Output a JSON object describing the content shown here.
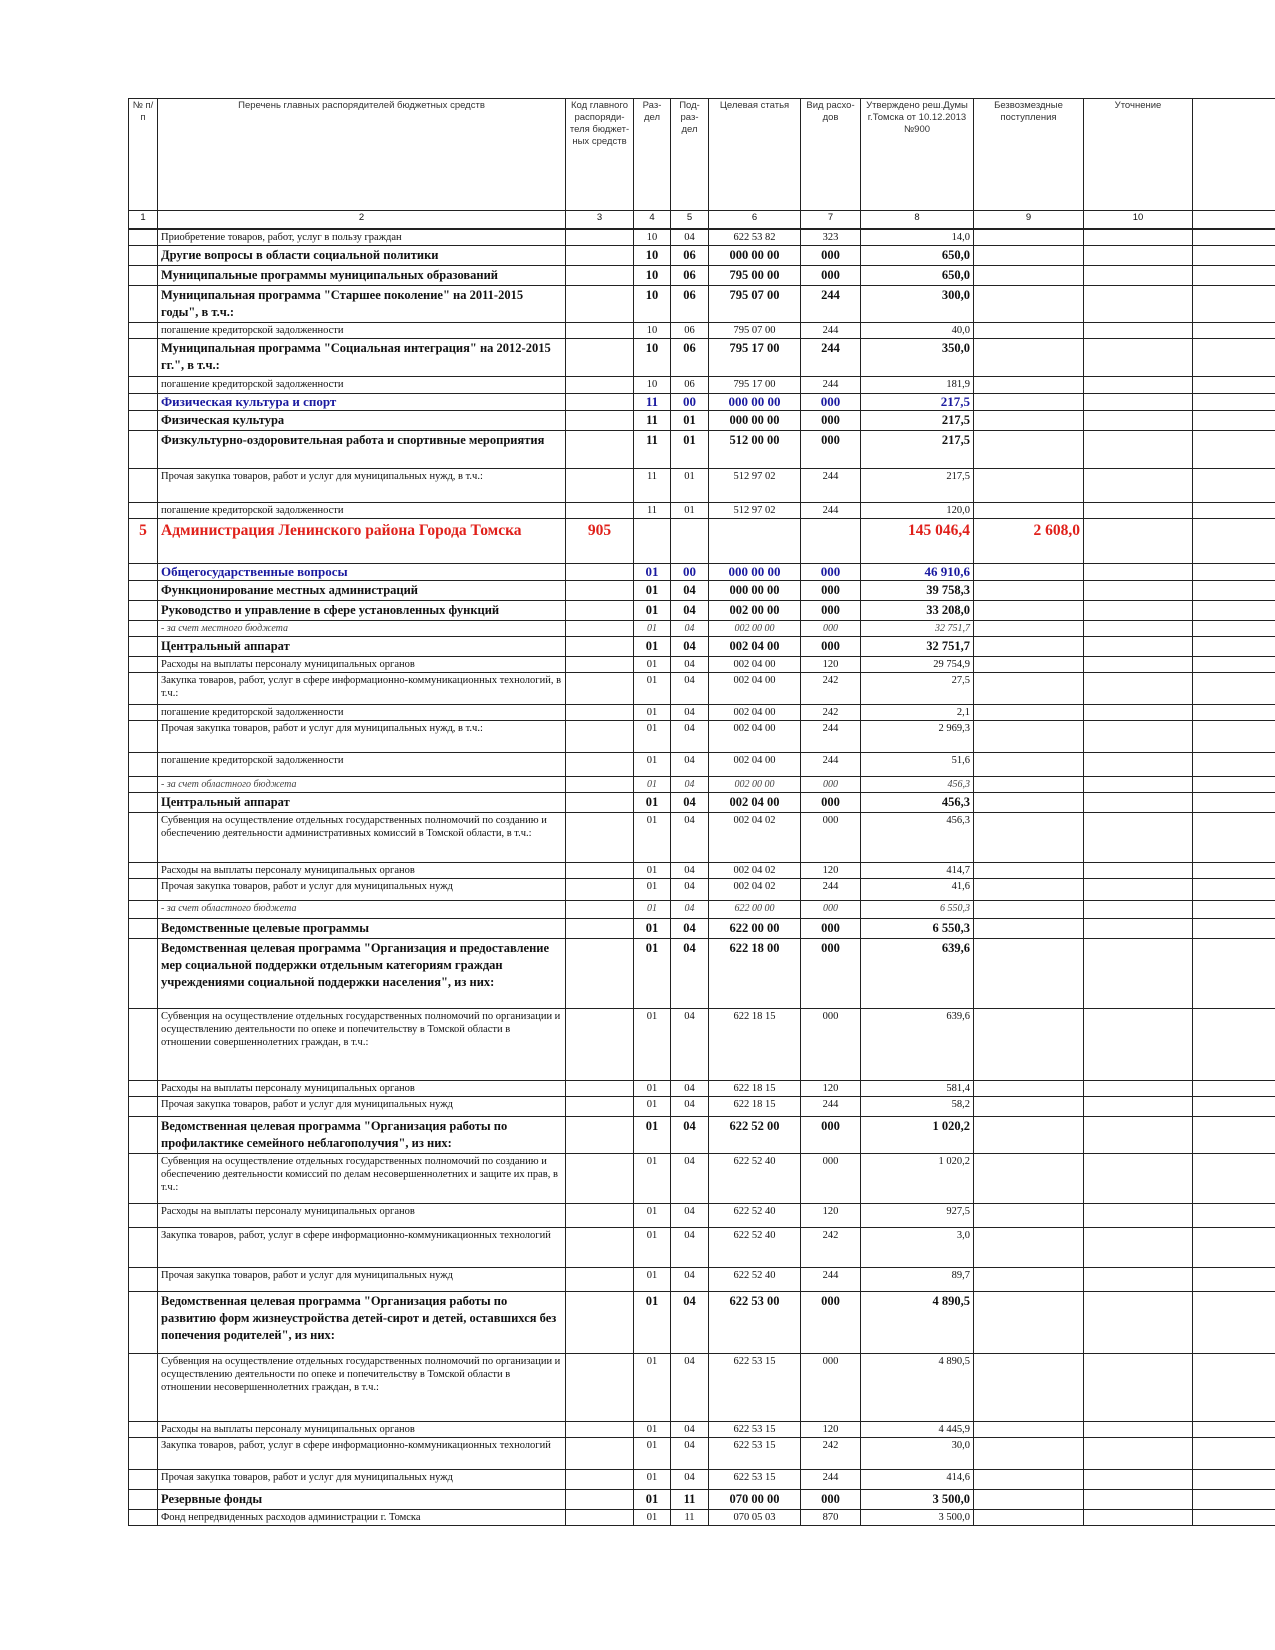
{
  "table": {
    "header": [
      "№ п/п",
      "Перечень главных распорядителей бюджетных средств",
      "Код главного распоряди-теля бюджет-ных средств",
      "Раз-дел",
      "Под-раз-дел",
      "Целевая статья",
      "Вид расхо-дов",
      "Утверждено реш.Думы г.Томска от 10.12.2013 №900",
      "Безвозмездные поступления",
      "Уточнение"
    ],
    "column_numbers": [
      1,
      2,
      3,
      4,
      5,
      6,
      7,
      8,
      9,
      10
    ],
    "rows": [
      {
        "name": "Приобретение товаров, работ, услуг в пользу граждан",
        "sec": "10",
        "sub": "04",
        "target": "622 53 82",
        "kind": "323",
        "approved": "14,0"
      },
      {
        "name": "Другие вопросы в области социальной политики",
        "sec": "10",
        "sub": "06",
        "target": "000 00 00",
        "kind": "000",
        "approved": "650,0"
      },
      {
        "name": "Муниципальные программы муниципальных образований",
        "sec": "10",
        "sub": "06",
        "target": "795 00 00",
        "kind": "000",
        "approved": "650,0"
      },
      {
        "name": "Муниципальная программа \"Старшее поколение\" на 2011-2015 годы\", в т.ч.:",
        "sec": "10",
        "sub": "06",
        "target": "795 07 00",
        "kind": "244",
        "approved": "300,0"
      },
      {
        "name": "погашение кредиторской задолженности",
        "sec": "10",
        "sub": "06",
        "target": "795 07 00",
        "kind": "244",
        "approved": "40,0"
      },
      {
        "name": "Муниципальная программа \"Социальная интеграция\" на 2012-2015 гг.\", в т.ч.:",
        "sec": "10",
        "sub": "06",
        "target": "795 17 00",
        "kind": "244",
        "approved": "350,0"
      },
      {
        "name": "погашение кредиторской задолженности",
        "sec": "10",
        "sub": "06",
        "target": "795 17 00",
        "kind": "244",
        "approved": "181,9"
      },
      {
        "name": "Физическая культура и спорт",
        "sec": "11",
        "sub": "00",
        "target": "000 00 00",
        "kind": "000",
        "approved": "217,5"
      },
      {
        "name": "Физическая культура",
        "sec": "11",
        "sub": "01",
        "target": "000 00 00",
        "kind": "000",
        "approved": "217,5"
      },
      {
        "name": "Физкультурно-оздоровительная работа и спортивные мероприятия",
        "sec": "11",
        "sub": "01",
        "target": "512 00 00",
        "kind": "000",
        "approved": "217,5"
      },
      {
        "name": "Прочая закупка товаров, работ и услуг для муниципальных нужд, в т.ч.:",
        "sec": "11",
        "sub": "01",
        "target": "512 97 02",
        "kind": "244",
        "approved": "217,5"
      },
      {
        "name": "погашение кредиторской задолженности",
        "sec": "11",
        "sub": "01",
        "target": "512 97 02",
        "kind": "244",
        "approved": "120,0"
      },
      {
        "n": "5",
        "name": "Администрация Ленинского района Города Томска",
        "code": "905",
        "approved": "145 046,4",
        "grants": "2 608,0"
      },
      {
        "name": "Общегосударственные вопросы",
        "sec": "01",
        "sub": "00",
        "target": "000 00 00",
        "kind": "000",
        "approved": "46 910,6"
      },
      {
        "name": "Функционирование местных администраций",
        "sec": "01",
        "sub": "04",
        "target": "000 00 00",
        "kind": "000",
        "approved": "39 758,3"
      },
      {
        "name": "Руководство и управление в сфере установленных функций",
        "sec": "01",
        "sub": "04",
        "target": "002 00 00",
        "kind": "000",
        "approved": "33 208,0"
      },
      {
        "name": "- за счет местного бюджета",
        "sec": "01",
        "sub": "04",
        "target": "002 00 00",
        "kind": "000",
        "approved": "32 751,7"
      },
      {
        "name": "Центральный аппарат",
        "sec": "01",
        "sub": "04",
        "target": "002 04 00",
        "kind": "000",
        "approved": "32 751,7"
      },
      {
        "name": "Расходы на выплаты персоналу муниципальных органов",
        "sec": "01",
        "sub": "04",
        "target": "002 04 00",
        "kind": "120",
        "approved": "29 754,9"
      },
      {
        "name": "Закупка товаров, работ, услуг в сфере информационно-коммуникационных технологий, в т.ч.:",
        "sec": "01",
        "sub": "04",
        "target": "002 04 00",
        "kind": "242",
        "approved": "27,5"
      },
      {
        "name": "погашение кредиторской задолженности",
        "sec": "01",
        "sub": "04",
        "target": "002 04 00",
        "kind": "242",
        "approved": "2,1"
      },
      {
        "name": "Прочая закупка товаров, работ и услуг для муниципальных нужд, в т.ч.:",
        "sec": "01",
        "sub": "04",
        "target": "002 04 00",
        "kind": "244",
        "approved": "2 969,3"
      },
      {
        "name": "погашение кредиторской задолженности",
        "sec": "01",
        "sub": "04",
        "target": "002 04 00",
        "kind": "244",
        "approved": "51,6"
      },
      {
        "name": "- за счет областного бюджета",
        "sec": "01",
        "sub": "04",
        "target": "002 00 00",
        "kind": "000",
        "approved": "456,3"
      },
      {
        "name": "Центральный аппарат",
        "sec": "01",
        "sub": "04",
        "target": "002 04 00",
        "kind": "000",
        "approved": "456,3"
      },
      {
        "name": "Субвенция на осуществление отдельных государственных полномочий по созданию и обеспечению деятельности административных комиссий в Томской области, в т.ч.:",
        "sec": "01",
        "sub": "04",
        "target": "002 04 02",
        "kind": "000",
        "approved": "456,3"
      },
      {
        "name": "Расходы на выплаты персоналу муниципальных органов",
        "sec": "01",
        "sub": "04",
        "target": "002 04 02",
        "kind": "120",
        "approved": "414,7"
      },
      {
        "name": "Прочая закупка товаров, работ и услуг для муниципальных нужд",
        "sec": "01",
        "sub": "04",
        "target": "002 04 02",
        "kind": "244",
        "approved": "41,6"
      },
      {
        "name": "- за счет областного бюджета",
        "sec": "01",
        "sub": "04",
        "target": "622 00 00",
        "kind": "000",
        "approved": "6 550,3"
      },
      {
        "name": "Ведомственные целевые программы",
        "sec": "01",
        "sub": "04",
        "target": "622 00 00",
        "kind": "000",
        "approved": "6 550,3"
      },
      {
        "name": "Ведомственная целевая программа \"Организация и предоставление мер социальной поддержки отдельным категориям граждан учреждениями социальной поддержки населения\", из них:",
        "sec": "01",
        "sub": "04",
        "target": "622 18 00",
        "kind": "000",
        "approved": "639,6"
      },
      {
        "name": "Субвенция на осуществление отдельных государственных полномочий по организации и осуществлению деятельности по опеке и попечительству в Томской области в отношении совершеннолетних граждан, в т.ч.:",
        "sec": "01",
        "sub": "04",
        "target": "622 18 15",
        "kind": "000",
        "approved": "639,6"
      },
      {
        "name": "Расходы на выплаты персоналу муниципальных органов",
        "sec": "01",
        "sub": "04",
        "target": "622 18 15",
        "kind": "120",
        "approved": "581,4"
      },
      {
        "name": "Прочая закупка товаров, работ и услуг для муниципальных нужд",
        "sec": "01",
        "sub": "04",
        "target": "622 18 15",
        "kind": "244",
        "approved": "58,2"
      },
      {
        "name": "Ведомственная целевая программа \"Организация работы по профилактике семейного неблагополучия\", из них:",
        "sec": "01",
        "sub": "04",
        "target": "622 52 00",
        "kind": "000",
        "approved": "1 020,2"
      },
      {
        "name": "Субвенция на осуществление отдельных государственных полномочий по созданию и обеспечению деятельности комиссий по делам несовершеннолетних и защите их прав, в т.ч.:",
        "sec": "01",
        "sub": "04",
        "target": "622 52 40",
        "kind": "000",
        "approved": "1 020,2"
      },
      {
        "name": "Расходы на выплаты персоналу муниципальных органов",
        "sec": "01",
        "sub": "04",
        "target": "622 52 40",
        "kind": "120",
        "approved": "927,5"
      },
      {
        "name": "Закупка товаров, работ, услуг в сфере информационно-коммуникационных технологий",
        "sec": "01",
        "sub": "04",
        "target": "622 52 40",
        "kind": "242",
        "approved": "3,0"
      },
      {
        "name": "Прочая закупка товаров, работ и услуг для муниципальных нужд",
        "sec": "01",
        "sub": "04",
        "target": "622 52 40",
        "kind": "244",
        "approved": "89,7"
      },
      {
        "name": "Ведомственная целевая программа \"Организация работы по развитию форм жизнеустройства детей-сирот и детей, оставшихся без попечения родителей\", из них:",
        "sec": "01",
        "sub": "04",
        "target": "622 53 00",
        "kind": "000",
        "approved": "4 890,5"
      },
      {
        "name": "Субвенция на осуществление отдельных государственных полномочий по организации и осуществлению деятельности по опеке и попечительству в Томской области в отношении несовершеннолетних граждан, в т.ч.:",
        "sec": "01",
        "sub": "04",
        "target": "622 53 15",
        "kind": "000",
        "approved": "4 890,5"
      },
      {
        "name": "Расходы на выплаты персоналу муниципальных органов",
        "sec": "01",
        "sub": "04",
        "target": "622 53 15",
        "kind": "120",
        "approved": "4 445,9"
      },
      {
        "name": "Закупка товаров, работ, услуг в сфере информационно-коммуникационных технологий",
        "sec": "01",
        "sub": "04",
        "target": "622 53 15",
        "kind": "242",
        "approved": "30,0"
      },
      {
        "name": "Прочая закупка товаров, работ и услуг для муниципальных нужд",
        "sec": "01",
        "sub": "04",
        "target": "622 53 15",
        "kind": "244",
        "approved": "414,6"
      },
      {
        "name": "Резервные фонды",
        "sec": "01",
        "sub": "11",
        "target": "070 00 00",
        "kind": "000",
        "approved": "3 500,0"
      },
      {
        "name": "Фонд непредвиденных расходов администрации г. Томска",
        "sec": "01",
        "sub": "11",
        "target": "070 05 03",
        "kind": "870",
        "approved": "3 500,0"
      }
    ]
  }
}
